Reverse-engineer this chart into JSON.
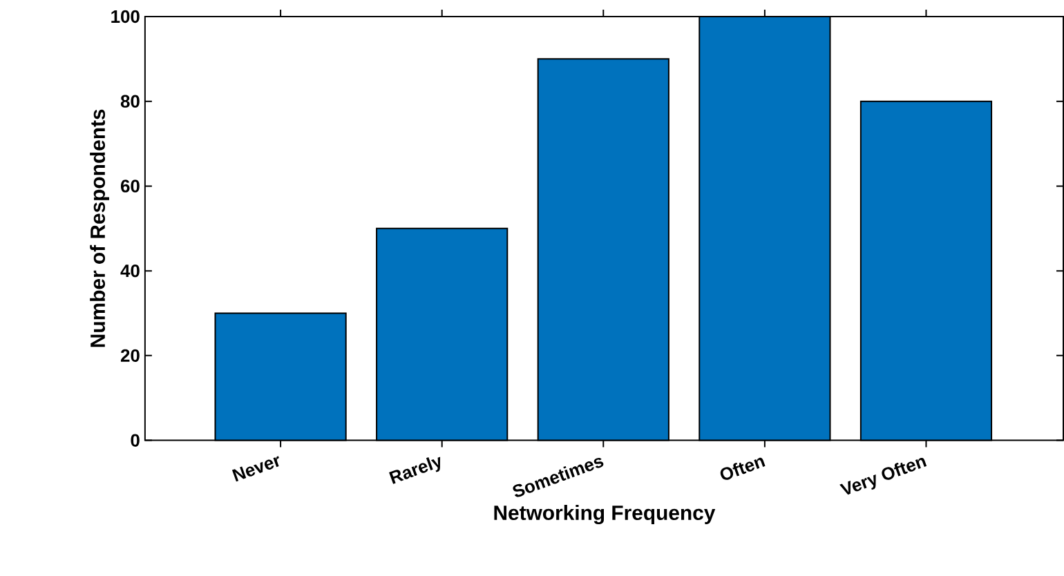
{
  "chart_data": {
    "type": "bar",
    "xlabel": "Networking Frequency",
    "ylabel": "Number of Respondents",
    "categories": [
      "Never",
      "Rarely",
      "Sometimes",
      "Often",
      "Very Often"
    ],
    "values": [
      30,
      50,
      90,
      100,
      80
    ],
    "color": "#0072bd",
    "ylim": [
      0,
      100
    ],
    "yticks": [
      0,
      20,
      40,
      60,
      80,
      100
    ]
  }
}
